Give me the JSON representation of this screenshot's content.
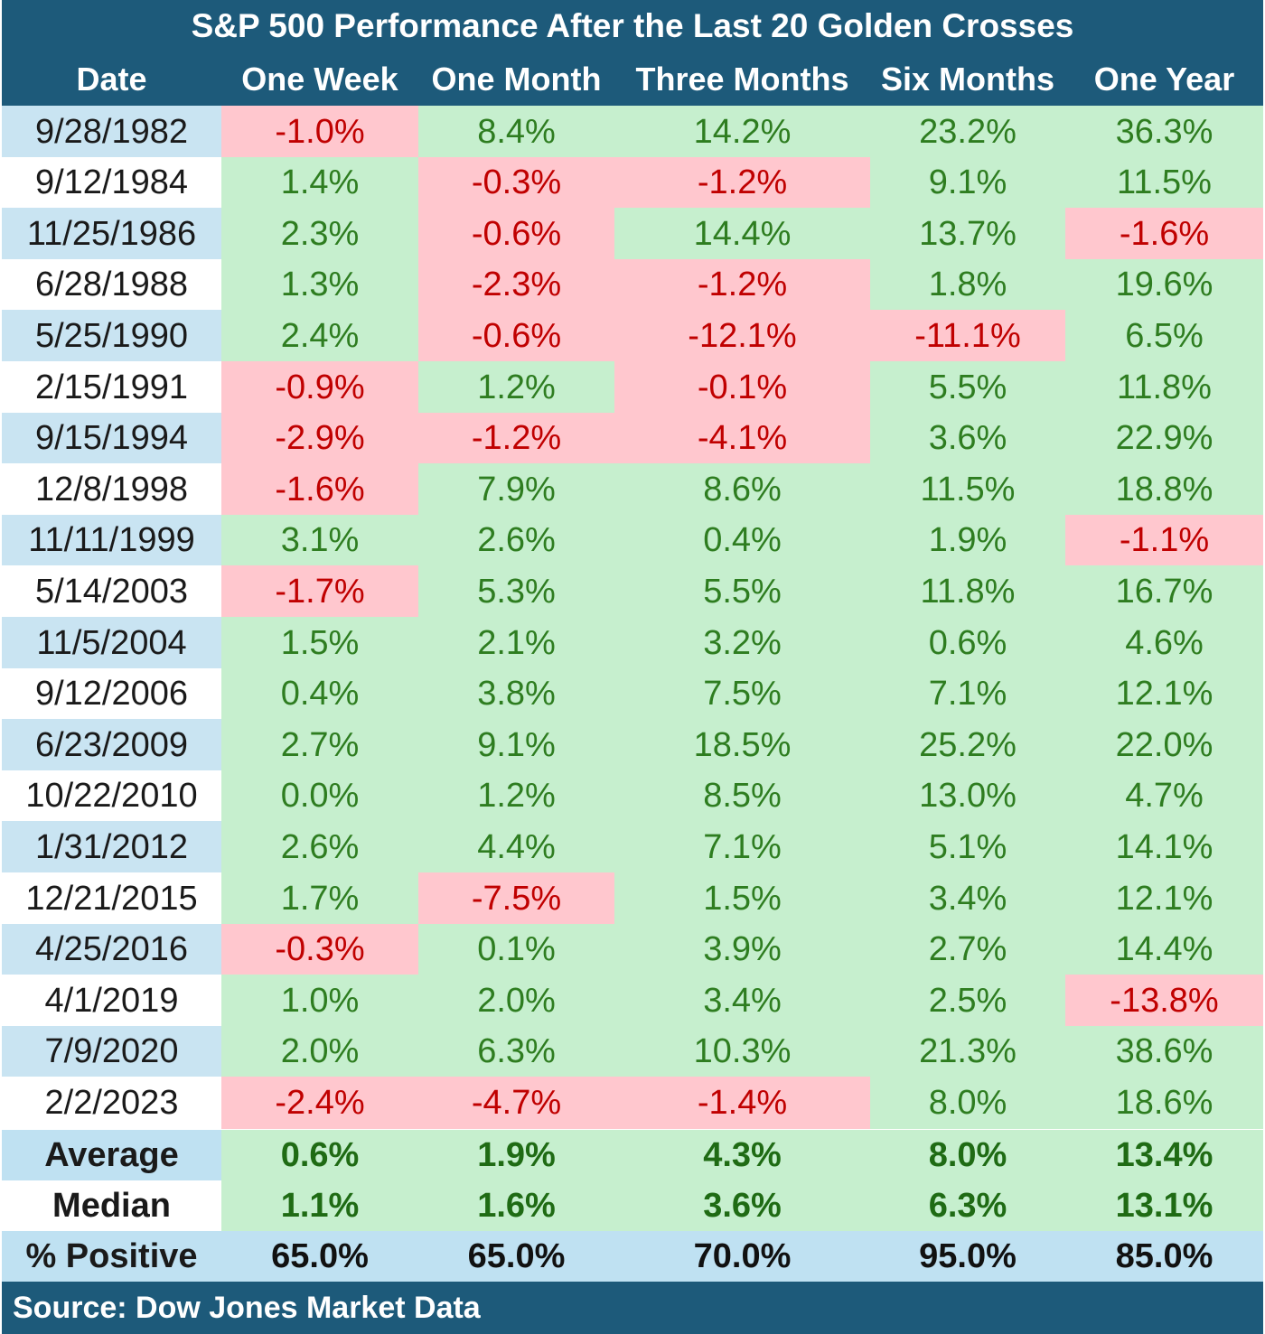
{
  "chart_data": {
    "type": "table",
    "title": "S&P 500 Performance After the Last 20 Golden Crosses",
    "columns": [
      "Date",
      "One Week",
      "One Month",
      "Three Months",
      "Six Months",
      "One Year"
    ],
    "rows": [
      {
        "date": "9/28/1982",
        "values": [
          "-1.0%",
          "8.4%",
          "14.2%",
          "23.2%",
          "36.3%"
        ]
      },
      {
        "date": "9/12/1984",
        "values": [
          "1.4%",
          "-0.3%",
          "-1.2%",
          "9.1%",
          "11.5%"
        ]
      },
      {
        "date": "11/25/1986",
        "values": [
          "2.3%",
          "-0.6%",
          "14.4%",
          "13.7%",
          "-1.6%"
        ]
      },
      {
        "date": "6/28/1988",
        "values": [
          "1.3%",
          "-2.3%",
          "-1.2%",
          "1.8%",
          "19.6%"
        ]
      },
      {
        "date": "5/25/1990",
        "values": [
          "2.4%",
          "-0.6%",
          "-12.1%",
          "-11.1%",
          "6.5%"
        ]
      },
      {
        "date": "2/15/1991",
        "values": [
          "-0.9%",
          "1.2%",
          "-0.1%",
          "5.5%",
          "11.8%"
        ]
      },
      {
        "date": "9/15/1994",
        "values": [
          "-2.9%",
          "-1.2%",
          "-4.1%",
          "3.6%",
          "22.9%"
        ]
      },
      {
        "date": "12/8/1998",
        "values": [
          "-1.6%",
          "7.9%",
          "8.6%",
          "11.5%",
          "18.8%"
        ]
      },
      {
        "date": "11/11/1999",
        "values": [
          "3.1%",
          "2.6%",
          "0.4%",
          "1.9%",
          "-1.1%"
        ]
      },
      {
        "date": "5/14/2003",
        "values": [
          "-1.7%",
          "5.3%",
          "5.5%",
          "11.8%",
          "16.7%"
        ]
      },
      {
        "date": "11/5/2004",
        "values": [
          "1.5%",
          "2.1%",
          "3.2%",
          "0.6%",
          "4.6%"
        ]
      },
      {
        "date": "9/12/2006",
        "values": [
          "0.4%",
          "3.8%",
          "7.5%",
          "7.1%",
          "12.1%"
        ]
      },
      {
        "date": "6/23/2009",
        "values": [
          "2.7%",
          "9.1%",
          "18.5%",
          "25.2%",
          "22.0%"
        ]
      },
      {
        "date": "10/22/2010",
        "values": [
          "0.0%",
          "1.2%",
          "8.5%",
          "13.0%",
          "4.7%"
        ]
      },
      {
        "date": "1/31/2012",
        "values": [
          "2.6%",
          "4.4%",
          "7.1%",
          "5.1%",
          "14.1%"
        ]
      },
      {
        "date": "12/21/2015",
        "values": [
          "1.7%",
          "-7.5%",
          "1.5%",
          "3.4%",
          "12.1%"
        ]
      },
      {
        "date": "4/25/2016",
        "values": [
          "-0.3%",
          "0.1%",
          "3.9%",
          "2.7%",
          "14.4%"
        ]
      },
      {
        "date": "4/1/2019",
        "values": [
          "1.0%",
          "2.0%",
          "3.4%",
          "2.5%",
          "-13.8%"
        ]
      },
      {
        "date": "7/9/2020",
        "values": [
          "2.0%",
          "6.3%",
          "10.3%",
          "21.3%",
          "38.6%"
        ]
      },
      {
        "date": "2/2/2023",
        "values": [
          "-2.4%",
          "-4.7%",
          "-1.4%",
          "8.0%",
          "18.6%"
        ]
      }
    ],
    "summary": [
      {
        "label": "Average",
        "values": [
          "0.6%",
          "1.9%",
          "4.3%",
          "8.0%",
          "13.4%"
        ]
      },
      {
        "label": "Median",
        "values": [
          "1.1%",
          "1.6%",
          "3.6%",
          "6.3%",
          "13.1%"
        ]
      },
      {
        "label": "% Positive",
        "values": [
          "65.0%",
          "65.0%",
          "70.0%",
          "95.0%",
          "85.0%"
        ]
      }
    ],
    "source": "Source: Dow Jones Market Data",
    "colors": {
      "header_bg": "#1d5a7a",
      "positive_bg": "#c6efce",
      "positive_text": "#2e7d20",
      "negative_bg": "#ffc7ce",
      "negative_text": "#c00000",
      "date_band_bg": "#c9e4f2",
      "date_alt_bg": "#ffffff",
      "summary_band_bg": "#bfe1f2"
    }
  }
}
